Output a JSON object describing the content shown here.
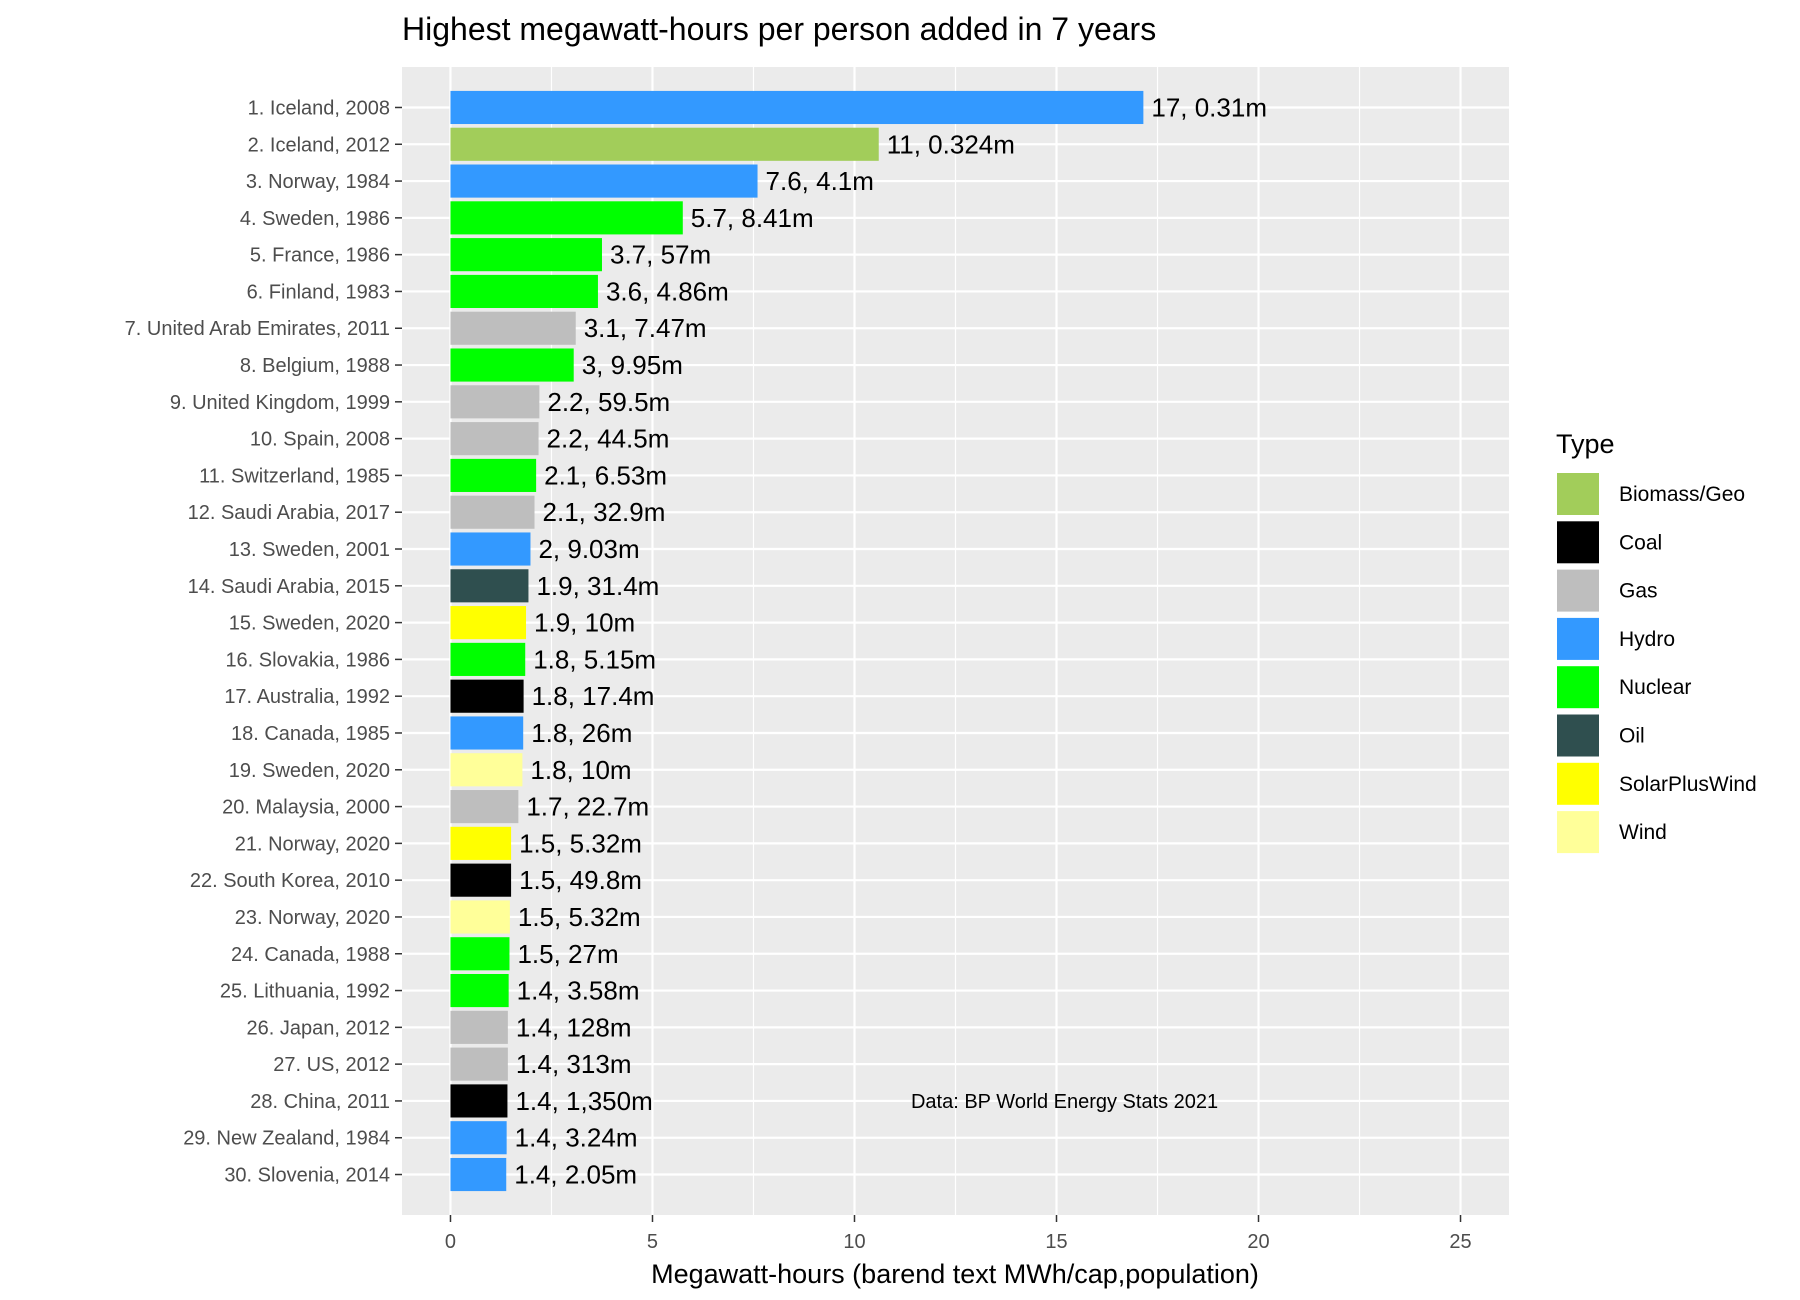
{
  "chart_data": {
    "type": "bar",
    "orientation": "horizontal",
    "title": "Highest megawatt-hours per person added in 7 years",
    "xlabel": "Megawatt-hours (barend text MWh/cap,population)",
    "ylabel": "",
    "xlim": [
      -1.2,
      26.2
    ],
    "xticks": [
      0,
      5,
      10,
      15,
      20,
      25
    ],
    "grid": true,
    "legend_position": "right",
    "legend_title": "Type",
    "type_colors": {
      "Biomass/Geo": "#a2cd5a",
      "Coal": "#000000",
      "Gas": "#bebebe",
      "Hydro": "#3399ff",
      "Nuclear": "#00ff00",
      "Oil": "#2f4f4f",
      "SolarPlusWind": "#ffff00",
      "Wind": "#ffff99"
    },
    "legend": [
      "Biomass/Geo",
      "Coal",
      "Gas",
      "Hydro",
      "Nuclear",
      "Oil",
      "SolarPlusWind",
      "Wind"
    ],
    "bars": [
      {
        "category": "1. Iceland, 2008",
        "value": 17.15,
        "type": "Hydro",
        "label": "17, 0.31m"
      },
      {
        "category": "2. Iceland, 2012",
        "value": 10.6,
        "type": "Biomass/Geo",
        "label": "11, 0.324m"
      },
      {
        "category": "3. Norway, 1984",
        "value": 7.6,
        "type": "Hydro",
        "label": "7.6, 4.1m"
      },
      {
        "category": "4. Sweden, 1986",
        "value": 5.75,
        "type": "Nuclear",
        "label": "5.7, 8.41m"
      },
      {
        "category": "5. France, 1986",
        "value": 3.75,
        "type": "Nuclear",
        "label": "3.7, 57m"
      },
      {
        "category": "6. Finland, 1983",
        "value": 3.65,
        "type": "Nuclear",
        "label": "3.6, 4.86m"
      },
      {
        "category": "7. United Arab Emirates, 2011",
        "value": 3.1,
        "type": "Gas",
        "label": "3.1, 7.47m"
      },
      {
        "category": "8. Belgium, 1988",
        "value": 3.05,
        "type": "Nuclear",
        "label": "3, 9.95m"
      },
      {
        "category": "9. United Kingdom, 1999",
        "value": 2.2,
        "type": "Gas",
        "label": "2.2, 59.5m"
      },
      {
        "category": "10. Spain, 2008",
        "value": 2.18,
        "type": "Gas",
        "label": "2.2, 44.5m"
      },
      {
        "category": "11. Switzerland, 1985",
        "value": 2.12,
        "type": "Nuclear",
        "label": "2.1, 6.53m"
      },
      {
        "category": "12. Saudi Arabia, 2017",
        "value": 2.08,
        "type": "Gas",
        "label": "2.1, 32.9m"
      },
      {
        "category": "13. Sweden, 2001",
        "value": 1.98,
        "type": "Hydro",
        "label": "2, 9.03m"
      },
      {
        "category": "14. Saudi Arabia, 2015",
        "value": 1.93,
        "type": "Oil",
        "label": "1.9, 31.4m"
      },
      {
        "category": "15. Sweden, 2020",
        "value": 1.87,
        "type": "SolarPlusWind",
        "label": "1.9, 10m"
      },
      {
        "category": "16. Slovakia, 1986",
        "value": 1.85,
        "type": "Nuclear",
        "label": "1.8, 5.15m"
      },
      {
        "category": "17. Australia, 1992",
        "value": 1.81,
        "type": "Coal",
        "label": "1.8, 17.4m"
      },
      {
        "category": "18. Canada, 1985",
        "value": 1.8,
        "type": "Hydro",
        "label": "1.8, 26m"
      },
      {
        "category": "19. Sweden, 2020",
        "value": 1.78,
        "type": "Wind",
        "label": "1.8, 10m"
      },
      {
        "category": "20. Malaysia, 2000",
        "value": 1.68,
        "type": "Gas",
        "label": "1.7, 22.7m"
      },
      {
        "category": "21. Norway, 2020",
        "value": 1.5,
        "type": "SolarPlusWind",
        "label": "1.5, 5.32m"
      },
      {
        "category": "22. South Korea, 2010",
        "value": 1.5,
        "type": "Coal",
        "label": "1.5, 49.8m"
      },
      {
        "category": "23. Norway, 2020",
        "value": 1.47,
        "type": "Wind",
        "label": "1.5, 5.32m"
      },
      {
        "category": "24. Canada, 1988",
        "value": 1.46,
        "type": "Nuclear",
        "label": "1.5, 27m"
      },
      {
        "category": "25. Lithuania, 1992",
        "value": 1.44,
        "type": "Nuclear",
        "label": "1.4, 3.58m"
      },
      {
        "category": "26. Japan, 2012",
        "value": 1.42,
        "type": "Gas",
        "label": "1.4, 128m"
      },
      {
        "category": "27. US, 2012",
        "value": 1.42,
        "type": "Gas",
        "label": "1.4, 313m"
      },
      {
        "category": "28. China, 2011",
        "value": 1.41,
        "type": "Coal",
        "label": "1.4, 1,350m"
      },
      {
        "category": "29. New Zealand, 1984",
        "value": 1.39,
        "type": "Hydro",
        "label": "1.4, 3.24m"
      },
      {
        "category": "30. Slovenia, 2014",
        "value": 1.38,
        "type": "Hydro",
        "label": "1.4, 2.05m"
      }
    ],
    "annotation": {
      "text": "Data: BP World Energy Stats 2021",
      "x": 15.2,
      "category_index": 27
    }
  }
}
